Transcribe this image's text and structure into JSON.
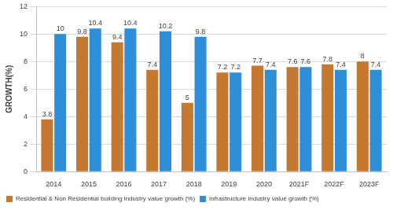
{
  "chart_data": {
    "type": "bar",
    "categories": [
      "2014",
      "2015",
      "2016",
      "2017",
      "2018",
      "2019",
      "2020",
      "2021F",
      "2022F",
      "2023F"
    ],
    "series": [
      {
        "name": "Residential & Non Residential building industry value growth (%)",
        "color": "#c5782f",
        "values": [
          3.8,
          9.8,
          9.4,
          7.4,
          5,
          7.2,
          7.7,
          7.6,
          7.8,
          8
        ]
      },
      {
        "name": "Infrastructure industry value growth (%)",
        "color": "#2e8fd8",
        "values": [
          10,
          10.4,
          10.4,
          10.2,
          9.8,
          7.2,
          7.4,
          7.6,
          7.4,
          7.4
        ]
      }
    ],
    "y_label": "GROWTH(%)",
    "ylim": [
      0,
      12
    ],
    "yticks": [
      0,
      2,
      4,
      6,
      8,
      10,
      12
    ],
    "grid": true,
    "legend": "bottom",
    "data_labels": true
  }
}
